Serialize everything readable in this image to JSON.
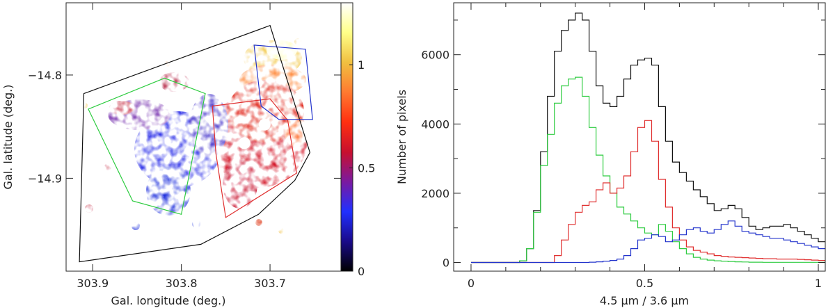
{
  "chart_data": [
    {
      "type": "heatmap",
      "xlabel": "Gal. longitude (deg.)",
      "ylabel": "Gal. latitude (deg.)",
      "xlim": [
        303.93,
        303.62
      ],
      "ylim": [
        -14.99,
        -14.73
      ],
      "x_ticks": [
        303.9,
        303.8,
        303.7
      ],
      "x_tick_labels": [
        "303.9",
        "303.8",
        "303.7"
      ],
      "y_ticks": [
        -14.8,
        -14.9
      ],
      "y_tick_labels": [
        "−14.8",
        "−14.9"
      ],
      "colorbar": {
        "range": [
          0,
          1.3
        ],
        "ticks": [
          0,
          0.5,
          1
        ],
        "tick_labels": [
          "0",
          "0.5",
          "1"
        ],
        "colormap": [
          "#000000",
          "#1a0a8a",
          "#2030ff",
          "#7a1aa0",
          "#c8102e",
          "#ff3010",
          "#ff7a30",
          "#f0c040",
          "#ffff88",
          "#ffffff"
        ]
      },
      "regions": [
        {
          "color": "#111111",
          "vertices": [
            [
              303.91,
              -14.818
            ],
            [
              303.7,
              -14.752
            ],
            [
              303.655,
              -14.875
            ],
            [
              303.672,
              -14.902
            ],
            [
              303.713,
              -14.935
            ],
            [
              303.778,
              -14.964
            ],
            [
              303.915,
              -14.981
            ]
          ]
        },
        {
          "color": "#2ecc40",
          "vertices": [
            [
              303.905,
              -14.833
            ],
            [
              303.819,
              -14.803
            ],
            [
              303.773,
              -14.818
            ],
            [
              303.8,
              -14.935
            ],
            [
              303.855,
              -14.922
            ]
          ]
        },
        {
          "color": "#e03030",
          "vertices": [
            [
              303.765,
              -14.83
            ],
            [
              303.7,
              -14.823
            ],
            [
              303.68,
              -14.844
            ],
            [
              303.67,
              -14.895
            ],
            [
              303.75,
              -14.938
            ],
            [
              303.761,
              -14.876
            ]
          ]
        },
        {
          "color": "#2233cc",
          "vertices": [
            [
              303.718,
              -14.771
            ],
            [
              303.66,
              -14.775
            ],
            [
              303.652,
              -14.843
            ],
            [
              303.69,
              -14.843
            ],
            [
              303.71,
              -14.83
            ]
          ]
        }
      ],
      "masked_sources": [
        [
          303.729,
          -14.866
        ],
        [
          303.706,
          -14.848
        ]
      ]
    },
    {
      "type": "line",
      "xlabel": "4.5 μm / 3.6 μm",
      "ylabel": "Number of pixels",
      "xlim": [
        -0.05,
        1.02
      ],
      "ylim": [
        -250,
        7500
      ],
      "x_ticks": [
        0,
        0.5,
        1
      ],
      "x_tick_labels": [
        "0",
        "0.5",
        "1"
      ],
      "y_ticks": [
        0,
        2000,
        4000,
        6000
      ],
      "y_tick_labels": [
        "0",
        "2000",
        "4000",
        "6000"
      ],
      "x": [
        0,
        0.1,
        0.12,
        0.14,
        0.16,
        0.18,
        0.2,
        0.22,
        0.24,
        0.26,
        0.28,
        0.3,
        0.32,
        0.34,
        0.36,
        0.38,
        0.4,
        0.42,
        0.44,
        0.46,
        0.48,
        0.5,
        0.52,
        0.54,
        0.56,
        0.58,
        0.6,
        0.62,
        0.64,
        0.66,
        0.68,
        0.7,
        0.72,
        0.74,
        0.76,
        0.78,
        0.8,
        0.82,
        0.84,
        0.86,
        0.88,
        0.9,
        0.92,
        0.94,
        0.96,
        0.98,
        1.0
      ],
      "series": [
        {
          "color": "#111111",
          "values": [
            0,
            0,
            0,
            50,
            400,
            1500,
            3200,
            4800,
            6100,
            6700,
            7000,
            7200,
            7000,
            6100,
            5100,
            4600,
            4500,
            4800,
            5300,
            5700,
            5850,
            5900,
            5700,
            4500,
            3500,
            2900,
            2600,
            2350,
            2100,
            1900,
            1700,
            1500,
            1550,
            1650,
            1550,
            1300,
            1050,
            950,
            1000,
            1050,
            1050,
            1100,
            1000,
            900,
            800,
            700,
            600
          ]
        },
        {
          "color": "#2ecc40",
          "values": [
            0,
            0,
            0,
            50,
            400,
            1450,
            2800,
            3700,
            4600,
            5100,
            5300,
            5350,
            4800,
            3900,
            3100,
            2500,
            2000,
            1600,
            1400,
            1200,
            1000,
            850,
            800,
            1100,
            900,
            600,
            400,
            250,
            150,
            100,
            70,
            50,
            40,
            30,
            20,
            15,
            10,
            10,
            5,
            5,
            5,
            5,
            5,
            5,
            5,
            5,
            5
          ]
        },
        {
          "color": "#e03030",
          "values": [
            0,
            0,
            0,
            0,
            0,
            0,
            0,
            0,
            200,
            650,
            1100,
            1450,
            1650,
            1750,
            2100,
            2300,
            2000,
            2150,
            2500,
            3200,
            3900,
            4100,
            3500,
            2400,
            1600,
            1000,
            650,
            450,
            350,
            300,
            250,
            200,
            180,
            160,
            150,
            140,
            130,
            120,
            110,
            110,
            100,
            100,
            100,
            90,
            80,
            70,
            60
          ]
        },
        {
          "color": "#2233cc",
          "values": [
            0,
            0,
            0,
            0,
            0,
            0,
            0,
            0,
            0,
            0,
            0,
            0,
            0,
            10,
            20,
            40,
            60,
            100,
            200,
            400,
            650,
            700,
            800,
            750,
            600,
            650,
            800,
            950,
            1000,
            900,
            850,
            950,
            1100,
            1200,
            1050,
            900,
            850,
            800,
            750,
            700,
            700,
            650,
            600,
            550,
            500,
            450,
            400
          ]
        }
      ]
    }
  ]
}
